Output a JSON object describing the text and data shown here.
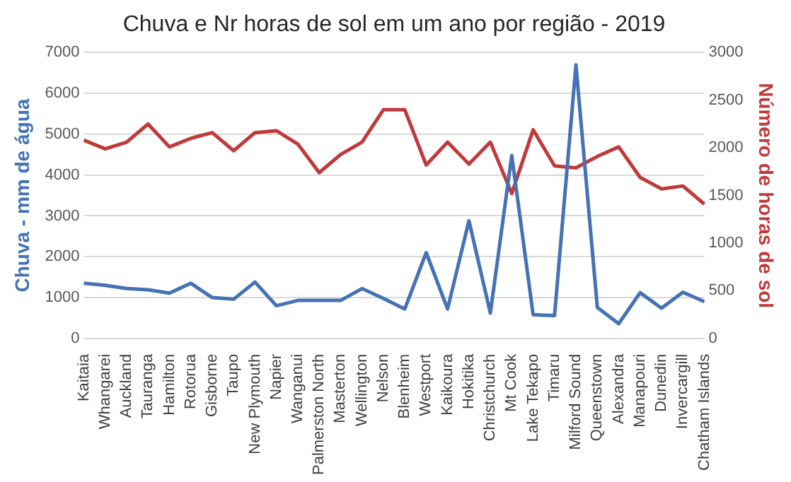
{
  "chart_data": {
    "type": "line",
    "title": "Chuva e Nr horas de sol em um ano por região - 2019",
    "ylabel": "Chuva - mm de água",
    "y2label": "Número de horas de sol",
    "categories": [
      "Kaitaia",
      "Whangarei",
      "Auckland",
      "Tauranga",
      "Hamilton",
      "Rotorua",
      "Gisborne",
      "Taupo",
      "New Plymouth",
      "Napier",
      "Wanganui",
      "Palmerston North",
      "Masterton",
      "Wellington",
      "Nelson",
      "Blenheim",
      "Westport",
      "Kaikoura",
      "Hokitika",
      "Christchurch",
      "Mt Cook",
      "Lake Tekapo",
      "Timaru",
      "Milford Sound",
      "Queenstown",
      "Alexandra",
      "Manapouri",
      "Dunedin",
      "Invercargill",
      "Chatham Islands"
    ],
    "series": [
      {
        "color": "#4472b4",
        "values": [
          1350,
          1300,
          1220,
          1190,
          1110,
          1350,
          1000,
          960,
          1380,
          800,
          930,
          930,
          930,
          1220,
          980,
          720,
          2100,
          720,
          2880,
          620,
          4480,
          580,
          560,
          6700,
          760,
          360,
          1120,
          740,
          1130,
          900
        ]
      },
      {
        "color": "#c0393b",
        "axis": "y2",
        "values": [
          2080,
          1990,
          2060,
          2250,
          2010,
          2100,
          2160,
          1970,
          2160,
          2180,
          2040,
          1740,
          1930,
          2060,
          2400,
          2400,
          1820,
          2060,
          1830,
          2060,
          1520,
          2190,
          1810,
          1790,
          1910,
          2010,
          1690,
          1570,
          1600,
          1410
        ]
      }
    ],
    "ylim": [
      0,
      7000
    ],
    "yticks": [
      0,
      1000,
      2000,
      3000,
      4000,
      5000,
      6000,
      7000
    ],
    "y2lim": [
      0,
      3000
    ],
    "y2ticks": [
      0,
      500,
      1000,
      1500,
      2000,
      2500,
      3000
    ],
    "grid": "y",
    "legend": false,
    "marker": "none",
    "line_style": "solid"
  }
}
